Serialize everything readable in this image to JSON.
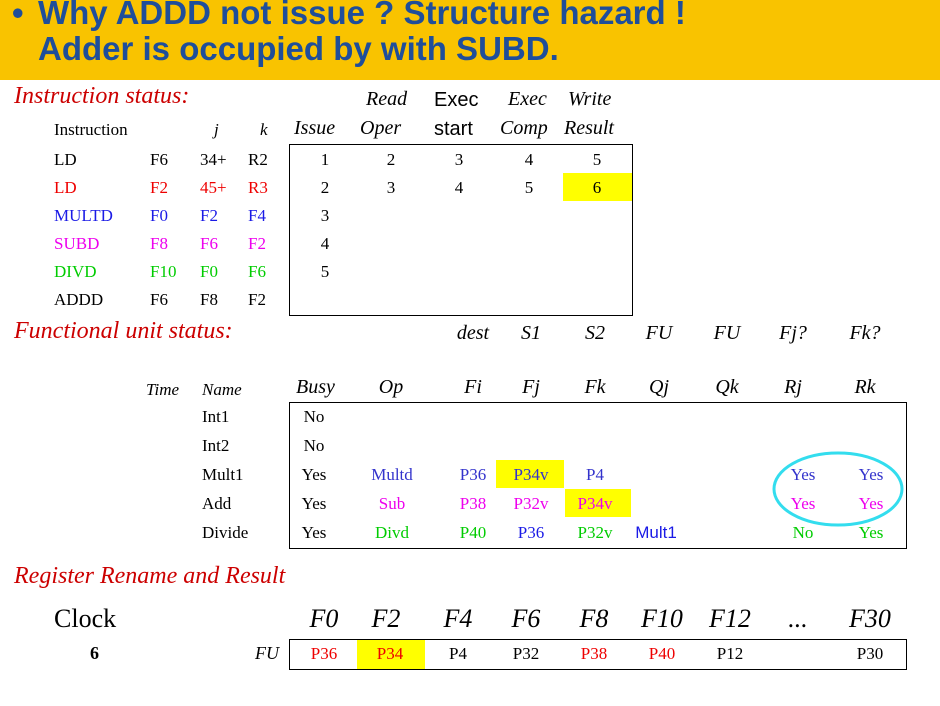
{
  "banner": {
    "bullet": "•",
    "line1": "Why ADDD not issue ? Structure hazard !",
    "line2": "Adder is occupied by with SUBD."
  },
  "instruction_status": {
    "title": "Instruction status:",
    "hdr_read": "Read",
    "hdr_exec": "Exec",
    "hdr_exec2": "Exec",
    "hdr_write": "Write",
    "hdr_instruction": "Instruction",
    "hdr_j": "j",
    "hdr_k": "k",
    "hdr_issue": "Issue",
    "hdr_oper": "Oper",
    "hdr_start": "start",
    "hdr_comp": "Comp",
    "hdr_result": "Result",
    "rows": [
      {
        "op": "LD",
        "dst": "F6",
        "j": "34+",
        "k": "R2",
        "issue": "1",
        "read": "2",
        "exec": "3",
        "comp": "4",
        "write": "5",
        "color": "#000000"
      },
      {
        "op": "LD",
        "dst": "F2",
        "j": "45+",
        "k": "R3",
        "issue": "2",
        "read": "3",
        "exec": "4",
        "comp": "5",
        "write": "6",
        "color": "#EE0000"
      },
      {
        "op": "MULTD",
        "dst": "F0",
        "j": "F2",
        "k": "F4",
        "issue": "3",
        "read": "",
        "exec": "",
        "comp": "",
        "write": "",
        "color": "#1A1AE6"
      },
      {
        "op": "SUBD",
        "dst": "F8",
        "j": "F6",
        "k": "F2",
        "issue": "4",
        "read": "",
        "exec": "",
        "comp": "",
        "write": "",
        "color": "#EE00EE"
      },
      {
        "op": "DIVD",
        "dst": "F10",
        "j": "F0",
        "k": "F6",
        "issue": "5",
        "read": "",
        "exec": "",
        "comp": "",
        "write": "",
        "color": "#00CC00"
      },
      {
        "op": "ADDD",
        "dst": "F6",
        "j": "F8",
        "k": "F2",
        "issue": "",
        "read": "",
        "exec": "",
        "comp": "",
        "write": "",
        "color": "#000000"
      }
    ]
  },
  "fu_status": {
    "title": "Functional unit status:",
    "h1": {
      "dest": "dest",
      "s1": "S1",
      "s2": "S2",
      "fu1": "FU",
      "fu2": "FU",
      "fj": "Fj?",
      "fk": "Fk?"
    },
    "h2": {
      "time": "Time",
      "name": "Name",
      "busy": "Busy",
      "op": "Op",
      "fi": "Fi",
      "fjcol": "Fj",
      "fkcol": "Fk",
      "qj": "Qj",
      "qk": "Qk",
      "rj": "Rj",
      "rk": "Rk"
    },
    "rows": [
      {
        "name": "Int1",
        "busy": "No",
        "op": "",
        "fi": "",
        "fj": "",
        "fk": "",
        "qj": "",
        "qk": "",
        "rj": "",
        "rk": ""
      },
      {
        "name": "Int2",
        "busy": "No",
        "op": "",
        "fi": "",
        "fj": "",
        "fk": "",
        "qj": "",
        "qk": "",
        "rj": "",
        "rk": ""
      },
      {
        "name": "Mult1",
        "busy": "Yes",
        "op": "Multd",
        "fi": "P36",
        "fj": "P34v",
        "fk": "P4",
        "qj": "",
        "qk": "",
        "rj": "Yes",
        "rk": "Yes"
      },
      {
        "name": "Add",
        "busy": "Yes",
        "op": "Sub",
        "fi": "P38",
        "fj": "P32v",
        "fk": "P34v",
        "qj": "",
        "qk": "",
        "rj": "Yes",
        "rk": "Yes"
      },
      {
        "name": "Divide",
        "busy": "Yes",
        "op": "Divd",
        "fi": "P40",
        "fj": "P36",
        "fk": "P32v",
        "qj": "Mult1",
        "qk": "",
        "rj": "No",
        "rk": "Yes"
      }
    ]
  },
  "register_rename": {
    "title": "Register Rename and Result",
    "clock_label": "Clock",
    "clock_value": "6",
    "fu_label": "FU",
    "regs": [
      "F0",
      "F2",
      "F4",
      "F6",
      "F8",
      "F10",
      "F12",
      "...",
      "F30"
    ],
    "values": [
      "P36",
      "P34",
      "P4",
      "P32",
      "P38",
      "P40",
      "P12",
      "",
      "P30"
    ]
  },
  "colors": {
    "banner": "#F9C300",
    "highlight": "#FFFF00",
    "circle": "#33DDEE"
  }
}
